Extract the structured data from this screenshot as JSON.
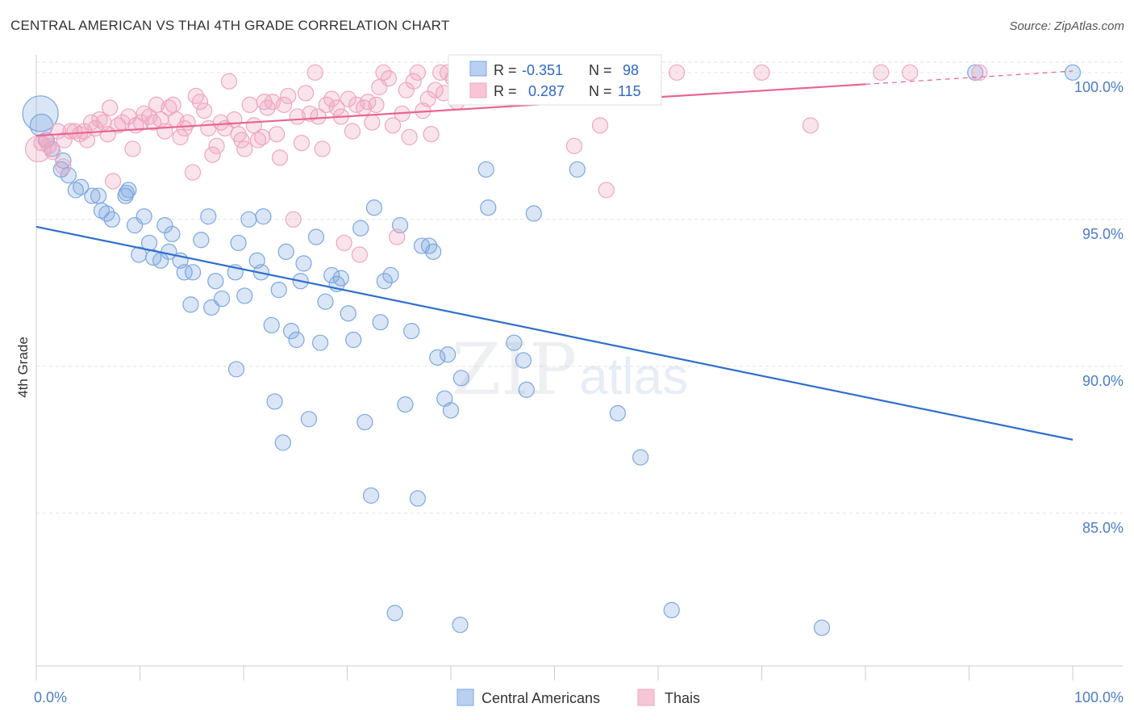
{
  "title": "CENTRAL AMERICAN VS THAI 4TH GRADE CORRELATION CHART",
  "source": "Source: ZipAtlas.com",
  "watermark": {
    "zip": "ZIP",
    "atlas": "atlas"
  },
  "chart_data": {
    "type": "scatter",
    "xlabel": "",
    "ylabel": "4th Grade",
    "xlim": [
      0,
      100
    ],
    "ylim": [
      79.8,
      100.6
    ],
    "x_tick_labels": [
      "0.0%",
      "100.0%"
    ],
    "y_ticks": [
      85,
      90,
      95,
      100
    ],
    "y_tick_labels": [
      "85.0%",
      "90.0%",
      "95.0%",
      "100.0%"
    ],
    "grid": true,
    "legend_position": "top-center",
    "stats": [
      {
        "r_label": "R = ",
        "r_value": "-0.351",
        "n_label": "N = ",
        "n_value": "98"
      },
      {
        "r_label": "R = ",
        "r_value": "0.287",
        "n_label": "N = ",
        "n_value": "115"
      }
    ],
    "series": [
      {
        "name": "Central Americans",
        "color": "#7ba7e0",
        "line_color": "#2f6fcc",
        "trend": {
          "x0": 0,
          "y0": 94.75,
          "x1": 100,
          "y1": 87.5
        },
        "points": [
          [
            0.4,
            98.6
          ],
          [
            0.5,
            98.2
          ],
          [
            1.0,
            97.7
          ],
          [
            1.5,
            97.4
          ],
          [
            2.6,
            97.0
          ],
          [
            2.4,
            96.7
          ],
          [
            3.1,
            96.5
          ],
          [
            3.8,
            96.0
          ],
          [
            4.3,
            96.1
          ],
          [
            5.4,
            95.8
          ],
          [
            6.0,
            95.8
          ],
          [
            6.3,
            95.3
          ],
          [
            6.8,
            95.2
          ],
          [
            7.3,
            95.0
          ],
          [
            8.6,
            95.8
          ],
          [
            8.7,
            95.9
          ],
          [
            8.9,
            96.0
          ],
          [
            9.5,
            94.8
          ],
          [
            9.9,
            93.8
          ],
          [
            10.4,
            95.1
          ],
          [
            10.9,
            94.2
          ],
          [
            11.3,
            93.7
          ],
          [
            12.0,
            93.6
          ],
          [
            12.4,
            94.8
          ],
          [
            12.8,
            93.9
          ],
          [
            13.1,
            94.5
          ],
          [
            13.9,
            93.6
          ],
          [
            14.3,
            93.2
          ],
          [
            14.9,
            92.1
          ],
          [
            15.1,
            93.2
          ],
          [
            15.9,
            94.3
          ],
          [
            16.6,
            95.1
          ],
          [
            16.9,
            92.0
          ],
          [
            17.3,
            92.9
          ],
          [
            17.9,
            92.3
          ],
          [
            19.2,
            93.2
          ],
          [
            19.3,
            89.9
          ],
          [
            19.5,
            94.2
          ],
          [
            20.1,
            92.4
          ],
          [
            20.5,
            95.0
          ],
          [
            21.3,
            93.6
          ],
          [
            21.7,
            93.2
          ],
          [
            21.9,
            95.1
          ],
          [
            22.7,
            91.4
          ],
          [
            23.0,
            88.8
          ],
          [
            23.4,
            92.6
          ],
          [
            23.8,
            87.4
          ],
          [
            24.1,
            93.9
          ],
          [
            24.6,
            91.2
          ],
          [
            25.1,
            90.9
          ],
          [
            25.5,
            92.9
          ],
          [
            25.8,
            93.5
          ],
          [
            26.3,
            88.2
          ],
          [
            27.0,
            94.4
          ],
          [
            27.4,
            90.8
          ],
          [
            27.9,
            92.2
          ],
          [
            28.5,
            93.1
          ],
          [
            29.0,
            92.8
          ],
          [
            29.4,
            93.0
          ],
          [
            30.1,
            91.8
          ],
          [
            30.6,
            90.9
          ],
          [
            31.3,
            94.7
          ],
          [
            31.7,
            88.1
          ],
          [
            32.3,
            85.6
          ],
          [
            32.6,
            95.4
          ],
          [
            33.2,
            91.5
          ],
          [
            33.6,
            92.9
          ],
          [
            34.2,
            93.1
          ],
          [
            34.6,
            81.6
          ],
          [
            35.1,
            94.8
          ],
          [
            35.6,
            88.7
          ],
          [
            36.2,
            91.2
          ],
          [
            36.8,
            85.5
          ],
          [
            37.2,
            94.1
          ],
          [
            37.9,
            94.1
          ],
          [
            38.3,
            93.9
          ],
          [
            38.7,
            90.3
          ],
          [
            39.4,
            88.9
          ],
          [
            39.7,
            90.4
          ],
          [
            40.0,
            88.5
          ],
          [
            41.0,
            89.6
          ],
          [
            40.9,
            81.2
          ],
          [
            43.4,
            96.7
          ],
          [
            43.6,
            95.4
          ],
          [
            46.1,
            90.8
          ],
          [
            47.0,
            90.2
          ],
          [
            47.3,
            89.2
          ],
          [
            48.0,
            95.2
          ],
          [
            52.2,
            96.7
          ],
          [
            56.1,
            88.4
          ],
          [
            58.3,
            86.9
          ],
          [
            61.3,
            81.7
          ],
          [
            75.8,
            81.1
          ],
          [
            90.6,
            100.0
          ],
          [
            100.0,
            100.0
          ],
          [
            50.6,
            99.9
          ]
        ]
      },
      {
        "name": "Thais",
        "color": "#f0a5bf",
        "line_color": "#e8668f",
        "trend": {
          "x0": 0,
          "y0": 97.85,
          "x1": 80,
          "y1": 99.6
        },
        "trend_dash": {
          "x0": 80,
          "y0": 99.6,
          "x1": 100,
          "y1": 100.05
        },
        "points": [
          [
            0.2,
            97.4
          ],
          [
            0.5,
            97.6
          ],
          [
            0.9,
            97.7
          ],
          [
            1.2,
            97.5
          ],
          [
            1.6,
            97.3
          ],
          [
            2.1,
            98.0
          ],
          [
            2.6,
            96.8
          ],
          [
            2.7,
            97.7
          ],
          [
            3.3,
            98.0
          ],
          [
            3.7,
            98.0
          ],
          [
            4.2,
            97.9
          ],
          [
            4.6,
            98.0
          ],
          [
            4.9,
            97.7
          ],
          [
            5.3,
            98.3
          ],
          [
            5.7,
            98.1
          ],
          [
            6.1,
            98.4
          ],
          [
            6.5,
            98.3
          ],
          [
            6.9,
            97.9
          ],
          [
            7.1,
            98.8
          ],
          [
            7.4,
            96.3
          ],
          [
            7.9,
            98.2
          ],
          [
            8.3,
            98.3
          ],
          [
            8.9,
            98.5
          ],
          [
            9.3,
            97.4
          ],
          [
            9.6,
            98.2
          ],
          [
            10.1,
            98.3
          ],
          [
            10.4,
            98.6
          ],
          [
            10.9,
            98.5
          ],
          [
            11.3,
            98.3
          ],
          [
            11.6,
            98.9
          ],
          [
            12.0,
            98.4
          ],
          [
            12.4,
            98.0
          ],
          [
            12.8,
            98.8
          ],
          [
            13.2,
            98.9
          ],
          [
            13.5,
            98.4
          ],
          [
            13.9,
            97.8
          ],
          [
            14.3,
            98.1
          ],
          [
            14.6,
            98.3
          ],
          [
            15.1,
            96.6
          ],
          [
            15.4,
            99.2
          ],
          [
            15.8,
            99.0
          ],
          [
            16.2,
            98.7
          ],
          [
            16.6,
            98.1
          ],
          [
            17.0,
            97.2
          ],
          [
            17.4,
            97.5
          ],
          [
            17.8,
            98.3
          ],
          [
            18.2,
            98.1
          ],
          [
            18.6,
            99.7
          ],
          [
            19.1,
            98.4
          ],
          [
            19.5,
            97.9
          ],
          [
            19.8,
            97.7
          ],
          [
            20.1,
            97.4
          ],
          [
            20.6,
            98.9
          ],
          [
            21.0,
            98.2
          ],
          [
            21.4,
            97.7
          ],
          [
            21.8,
            97.8
          ],
          [
            22.0,
            99.0
          ],
          [
            22.3,
            98.8
          ],
          [
            22.8,
            99.0
          ],
          [
            23.2,
            97.9
          ],
          [
            23.5,
            97.1
          ],
          [
            23.9,
            98.9
          ],
          [
            24.3,
            99.2
          ],
          [
            24.8,
            95.0
          ],
          [
            25.2,
            98.5
          ],
          [
            25.6,
            97.6
          ],
          [
            26.0,
            99.3
          ],
          [
            26.4,
            98.6
          ],
          [
            26.9,
            100.0
          ],
          [
            27.2,
            98.5
          ],
          [
            27.6,
            97.4
          ],
          [
            28.0,
            98.9
          ],
          [
            28.5,
            99.1
          ],
          [
            29.0,
            98.8
          ],
          [
            29.4,
            98.5
          ],
          [
            29.7,
            94.2
          ],
          [
            30.1,
            99.1
          ],
          [
            30.5,
            98.0
          ],
          [
            30.9,
            98.9
          ],
          [
            31.2,
            93.8
          ],
          [
            31.6,
            98.8
          ],
          [
            32.0,
            99.0
          ],
          [
            32.4,
            98.3
          ],
          [
            32.8,
            98.9
          ],
          [
            33.1,
            99.5
          ],
          [
            33.5,
            100.0
          ],
          [
            34.0,
            99.8
          ],
          [
            34.4,
            98.2
          ],
          [
            34.8,
            94.4
          ],
          [
            35.3,
            98.6
          ],
          [
            35.7,
            99.4
          ],
          [
            36.0,
            97.8
          ],
          [
            36.4,
            99.7
          ],
          [
            36.8,
            100.0
          ],
          [
            37.3,
            98.7
          ],
          [
            37.8,
            99.1
          ],
          [
            38.1,
            97.9
          ],
          [
            38.5,
            99.4
          ],
          [
            39.0,
            100.0
          ],
          [
            39.3,
            99.3
          ],
          [
            39.7,
            100.0
          ],
          [
            40.2,
            99.8
          ],
          [
            40.6,
            99.0
          ],
          [
            41.1,
            99.6
          ],
          [
            42.0,
            99.9
          ],
          [
            49.1,
            99.4
          ],
          [
            51.9,
            97.5
          ],
          [
            54.4,
            98.2
          ],
          [
            55.0,
            96.0
          ],
          [
            61.8,
            100.0
          ],
          [
            70.0,
            100.0
          ],
          [
            74.7,
            98.2
          ],
          [
            81.5,
            100.0
          ],
          [
            84.3,
            100.0
          ],
          [
            91.0,
            100.0
          ]
        ]
      }
    ]
  }
}
